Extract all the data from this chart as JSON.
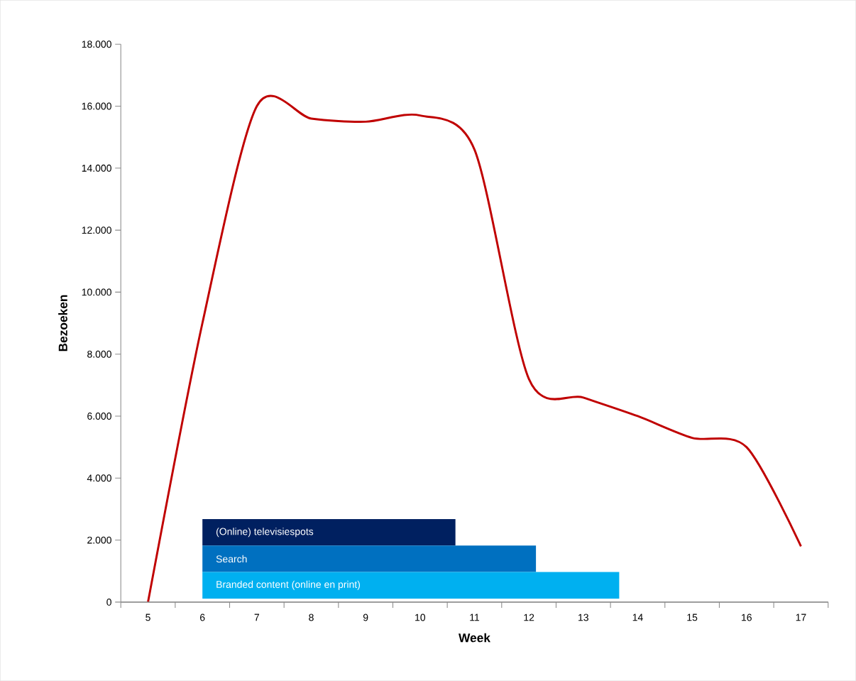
{
  "chart_data": [
    {
      "type": "line",
      "xlabel": "Week",
      "ylabel": "Bezoeken",
      "x": [
        5,
        6,
        7,
        8,
        9,
        10,
        11,
        12,
        13,
        14,
        15,
        16,
        17
      ],
      "series": [
        {
          "color": "#c00000",
          "values": [
            0,
            9000,
            16000,
            15600,
            15500,
            15700,
            14600,
            7200,
            6600,
            6000,
            5300,
            5000,
            1800
          ]
        }
      ],
      "xlim": [
        4.5,
        17.5
      ],
      "xticks": [
        5,
        6,
        7,
        8,
        9,
        10,
        11,
        12,
        13,
        14,
        15,
        16,
        17
      ],
      "ylim": [
        0,
        18000
      ],
      "yticks": [
        {
          "value": 0,
          "label": "0"
        },
        {
          "value": 2000,
          "label": "2.000"
        },
        {
          "value": 4000,
          "label": "4.000"
        },
        {
          "value": 6000,
          "label": "6.000"
        },
        {
          "value": 8000,
          "label": "8.000"
        },
        {
          "value": 10000,
          "label": "10.000"
        },
        {
          "value": 12000,
          "label": "12.000"
        },
        {
          "value": 14000,
          "label": "14.000"
        },
        {
          "value": 16000,
          "label": "16.000"
        },
        {
          "value": 18000,
          "label": "18.000"
        }
      ],
      "grid": false,
      "marker": "none",
      "line_style": "solid"
    },
    {
      "type": "bar",
      "orientation": "horizontal",
      "categories": [
        "(Online) televisiespots",
        "Search",
        "Branded content (online en print)"
      ],
      "values": [
        4.65,
        6.13,
        7.66
      ],
      "base": [
        6,
        6,
        6
      ],
      "colors": [
        "#002060",
        "#0070c0",
        "#00b0f0"
      ],
      "xlim": [
        4.5,
        17.5
      ]
    }
  ]
}
